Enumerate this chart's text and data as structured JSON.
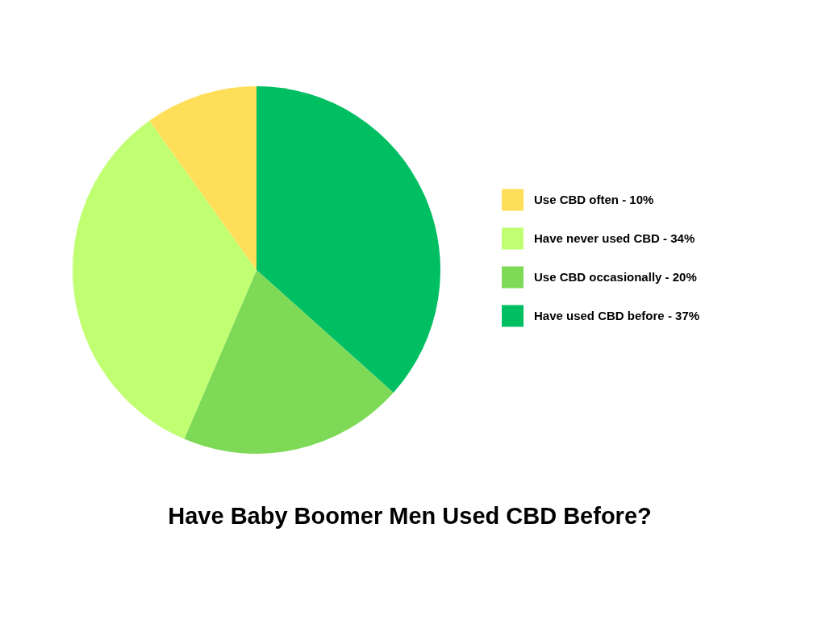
{
  "chart_data": {
    "type": "pie",
    "title": "Have Baby Boomer Men Used CBD Before?",
    "categories": [
      "Use CBD often - 10%",
      "Have never used CBD - 34%",
      "Use CBD occasionally - 20%",
      "Have used CBD before - 37%"
    ],
    "values": [
      10,
      34,
      20,
      37
    ],
    "colors": [
      "#ffde59",
      "#c1ff72",
      "#7ed957",
      "#00bf63"
    ],
    "legend": "right"
  }
}
